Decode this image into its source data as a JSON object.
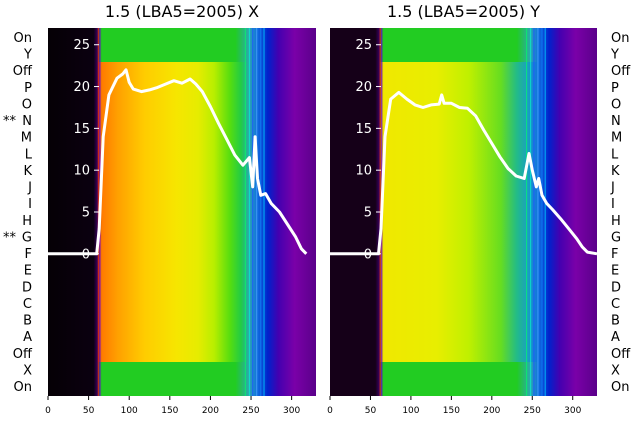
{
  "chart_data": [
    {
      "type": "line",
      "title": "1.5 (LBA5=2005) X",
      "xlabel": "",
      "ylabel": "",
      "xlim": [
        0,
        330
      ],
      "ylim": [
        -17,
        27
      ],
      "xticks": [
        0,
        50,
        100,
        150,
        200,
        250,
        300
      ],
      "yticks": [
        0,
        5,
        10,
        15,
        20,
        25
      ],
      "grid": false,
      "series": [
        {
          "values_x": [
            0,
            55,
            60,
            63,
            68,
            75,
            85,
            92,
            96,
            100,
            105,
            115,
            125,
            135,
            145,
            155,
            165,
            175,
            182,
            190,
            200,
            210,
            220,
            230,
            240,
            248,
            252,
            255,
            258,
            262,
            268,
            275,
            285,
            295,
            305,
            312,
            318
          ],
          "values_y": [
            0,
            0,
            0,
            3,
            14,
            19,
            21,
            21.5,
            22,
            20.5,
            19.7,
            19.4,
            19.6,
            19.9,
            20.3,
            20.7,
            20.4,
            20.9,
            20.3,
            19.4,
            17.6,
            15.6,
            13.7,
            11.8,
            10.6,
            11.5,
            8,
            14,
            9,
            7,
            7.2,
            6,
            5,
            3.5,
            2,
            0.6,
            0
          ]
        }
      ]
    },
    {
      "type": "line",
      "title": "1.5 (LBA5=2005) Y",
      "xlabel": "",
      "ylabel": "",
      "xlim": [
        0,
        330
      ],
      "ylim": [
        -17,
        27
      ],
      "xticks": [
        0,
        50,
        100,
        150,
        200,
        250,
        300
      ],
      "yticks": [
        0,
        5,
        10,
        15,
        20,
        25
      ],
      "grid": false,
      "series": [
        {
          "values_x": [
            0,
            55,
            60,
            63,
            68,
            75,
            85,
            95,
            105,
            115,
            125,
            135,
            138,
            141,
            150,
            160,
            170,
            180,
            190,
            200,
            210,
            220,
            230,
            240,
            246,
            250,
            255,
            258,
            262,
            268,
            275,
            285,
            295,
            305,
            312,
            318,
            330
          ],
          "values_y": [
            0,
            0,
            0,
            3,
            14,
            18.5,
            19.3,
            18.5,
            17.8,
            17.5,
            17.8,
            17.9,
            19,
            18,
            18,
            17.5,
            17.4,
            16.5,
            14.8,
            13.2,
            11.6,
            10.2,
            9.3,
            9,
            12,
            10,
            8,
            9,
            7,
            6,
            5.3,
            4.2,
            3,
            1.8,
            0.8,
            0.2,
            0
          ]
        }
      ]
    }
  ],
  "row_labels_left": [
    "On",
    "Y",
    "Off",
    "P",
    "O",
    "N",
    "M",
    "L",
    "K",
    "J",
    "I",
    "H",
    "G",
    "F",
    "E",
    "D",
    "C",
    "B",
    "A",
    "Off",
    "X",
    "On"
  ],
  "row_labels_right": [
    "On",
    "Y",
    "Off",
    "P",
    "O",
    "N",
    "M",
    "L",
    "K",
    "J",
    "I",
    "H",
    "G",
    "F",
    "E",
    "D",
    "C",
    "B",
    "A",
    "Off",
    "X",
    "On"
  ],
  "left_markers": [
    {
      "text": "**",
      "row": "N"
    },
    {
      "text": "**",
      "row": "G"
    }
  ],
  "colors": {
    "curve": "#ffffff",
    "black": "#000000",
    "orange": "#ff9a00",
    "yellow": "#f2e600",
    "green": "#22cc22",
    "blue": "#0033dd",
    "purple": "#8a00b8"
  }
}
